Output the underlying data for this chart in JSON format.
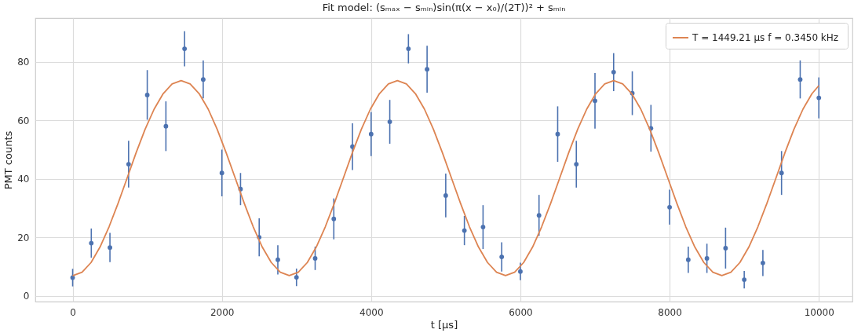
{
  "chart_data": {
    "type": "scatter",
    "title": "Fit model: (sₘₐₓ − sₘᵢₙ)sin(π(x − x₀)/(2T))² + sₘᵢₙ",
    "xlabel": "t [μs]",
    "ylabel": "PMT counts",
    "xlim": [
      -500,
      10450
    ],
    "xticks": [
      0,
      2000,
      4000,
      6000,
      8000,
      10000
    ],
    "ylim": [
      -2,
      95
    ],
    "yticks": [
      0,
      20,
      40,
      60,
      80
    ],
    "grid": true,
    "legend": "top right",
    "series": [
      {
        "color": "#4c72b0",
        "marker": "circle",
        "x": [
          0,
          250,
          500,
          750,
          1000,
          1250,
          1500,
          1750,
          2000,
          2250,
          2500,
          2750,
          3000,
          3250,
          3500,
          3750,
          4000,
          4250,
          4500,
          4750,
          5000,
          5250,
          5500,
          5750,
          6000,
          6250,
          6500,
          6750,
          7000,
          7250,
          7500,
          7750,
          8000,
          8250,
          8500,
          8750,
          9000,
          9250,
          9500,
          9750,
          10000
        ],
        "values": [
          6.2,
          18,
          16.5,
          45,
          68.7,
          58,
          84.5,
          74,
          42,
          36.5,
          20,
          12.3,
          6.3,
          12.8,
          26.3,
          51,
          55.3,
          59.5,
          84.5,
          77.5,
          34.3,
          22.3,
          23.5,
          13.3,
          8.3,
          27.5,
          55.3,
          45,
          66.7,
          76.5,
          69.3,
          57.3,
          30.3,
          12.3,
          12.8,
          16.3,
          5.5,
          11.2,
          42,
          74,
          67.7
        ],
        "errors": [
          3,
          5,
          5,
          8,
          8.5,
          8.5,
          6,
          6.5,
          8,
          5.5,
          6.5,
          5,
          3,
          4,
          7,
          8,
          7.5,
          7.5,
          5,
          8,
          7.5,
          5,
          7.5,
          5,
          3,
          7,
          9.5,
          8,
          9.5,
          6.5,
          7.5,
          8,
          6,
          4.5,
          5,
          7,
          3,
          4.5,
          7.5,
          6.5,
          7
        ]
      },
      {
        "type": "line",
        "name": "T = 1449.21 μs  f = 0.3450 kHz",
        "color": "#dd8452",
        "marker": "none",
        "x": [
          0,
          5,
          126,
          247,
          367,
          488,
          609,
          730,
          850,
          971,
          1092,
          1213,
          1333,
          1454,
          1575,
          1696,
          1817,
          1937,
          2058,
          2179,
          2300,
          2420,
          2541,
          2662,
          2783,
          2903,
          3024,
          3145,
          3265,
          3386,
          3507,
          3628,
          3748,
          3869,
          3990,
          4111,
          4231,
          4352,
          4473,
          4594,
          4715,
          4835,
          4956,
          5077,
          5198,
          5318,
          5439,
          5560,
          5681,
          5801,
          5923,
          6044,
          6164,
          6285,
          6406,
          6527,
          6647,
          6768,
          6889,
          7010,
          7130,
          7251,
          7372,
          7493,
          7614,
          7734,
          7855,
          7976,
          8097,
          8217,
          8338,
          8459,
          8580,
          8700,
          8821,
          8942,
          9062,
          9183,
          9304,
          9425,
          9545,
          9666,
          9787,
          9908,
          10000
        ],
        "values": [
          6.9,
          6.9,
          8.04,
          11.37,
          16.67,
          23.58,
          31.62,
          40.25,
          48.88,
          56.93,
          63.83,
          69.13,
          72.46,
          73.6,
          72.46,
          69.13,
          63.83,
          56.93,
          48.88,
          40.25,
          31.62,
          23.58,
          16.67,
          11.37,
          8.04,
          6.9,
          8.04,
          11.37,
          16.67,
          23.58,
          31.62,
          40.25,
          48.88,
          56.93,
          63.83,
          69.13,
          72.46,
          73.6,
          72.46,
          69.13,
          63.83,
          56.93,
          48.88,
          40.25,
          31.62,
          23.58,
          16.67,
          11.37,
          8.04,
          6.9,
          8.04,
          11.37,
          16.67,
          23.58,
          31.62,
          40.25,
          48.88,
          56.93,
          63.83,
          69.13,
          72.46,
          73.6,
          72.46,
          69.13,
          63.83,
          56.93,
          48.88,
          40.25,
          31.62,
          23.58,
          16.67,
          11.37,
          8.04,
          6.9,
          8.04,
          11.37,
          16.67,
          23.58,
          31.62,
          40.25,
          48.88,
          56.93,
          63.83,
          69.13,
          71.9
        ]
      }
    ]
  }
}
